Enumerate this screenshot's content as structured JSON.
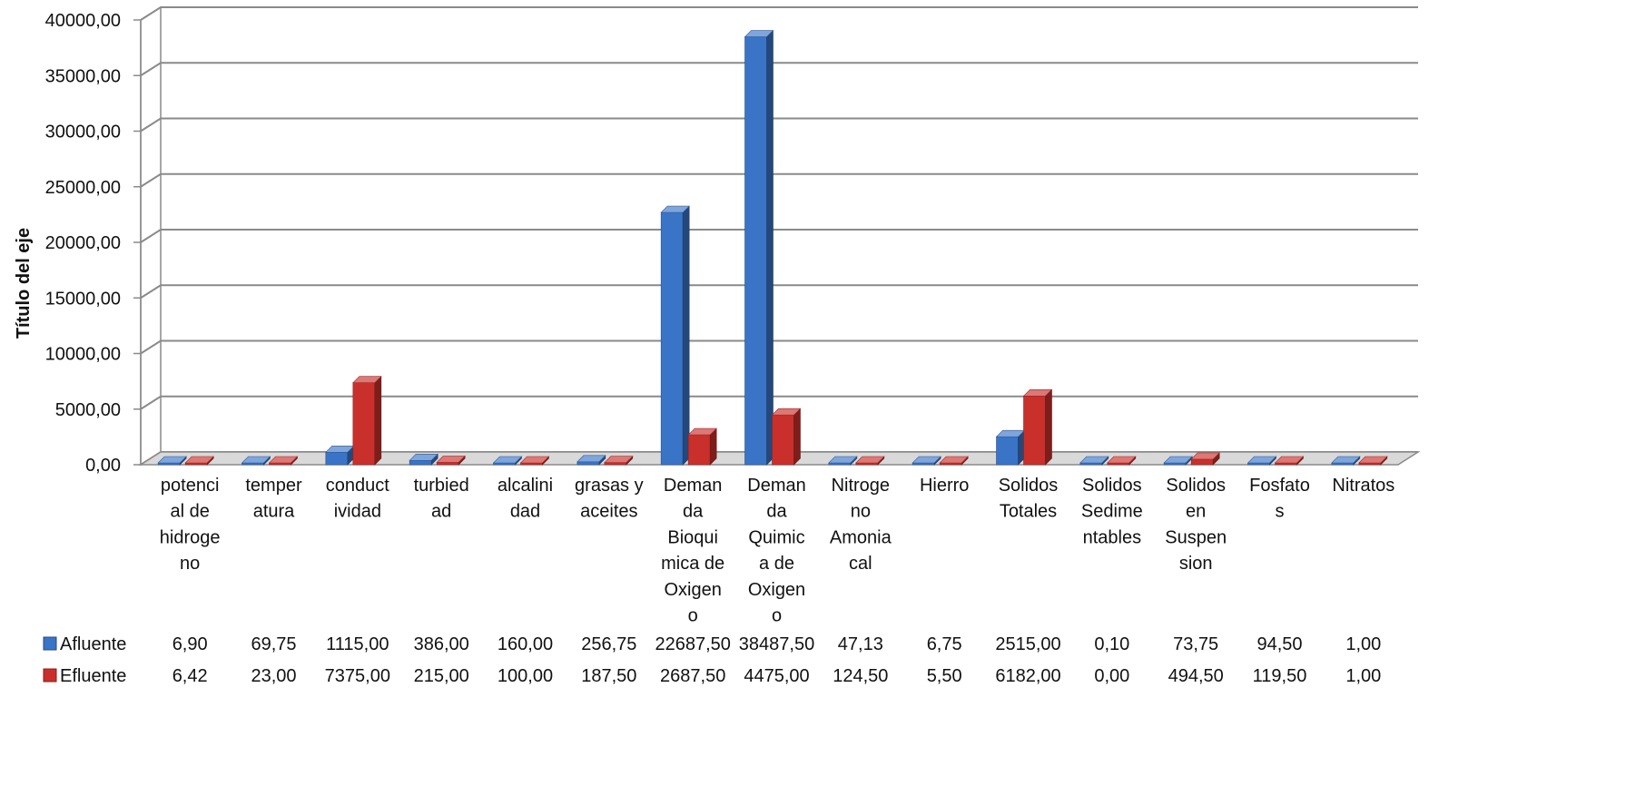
{
  "chart_data": {
    "type": "bar",
    "ylabel": "Título del eje",
    "ylim": [
      0,
      40000
    ],
    "yticks": [
      "0,00",
      "5000,00",
      "10000,00",
      "15000,00",
      "20000,00",
      "25000,00",
      "30000,00",
      "35000,00",
      "40000,00"
    ],
    "grid": true,
    "style": "3d-clustered-column",
    "legend_placement": "data-table-left",
    "categories": [
      [
        "potenci",
        "al de",
        "hidroge",
        "no"
      ],
      [
        "temper",
        "atura"
      ],
      [
        "conduct",
        "ividad"
      ],
      [
        "turbied",
        "ad"
      ],
      [
        "alcalini",
        "dad"
      ],
      [
        "grasas y",
        "aceites"
      ],
      [
        "Deman",
        "da",
        "Bioqui",
        "mica de",
        "Oxigen",
        "o"
      ],
      [
        "Deman",
        "da",
        "Quimic",
        "a de",
        "Oxigen",
        "o"
      ],
      [
        "Nitroge",
        "no",
        "Amonia",
        "cal"
      ],
      [
        "Hierro"
      ],
      [
        "Solidos",
        "Totales"
      ],
      [
        "Solidos",
        "Sedime",
        "ntables"
      ],
      [
        "Solidos",
        "en",
        "Suspen",
        "sion"
      ],
      [
        "Fosfato",
        "s"
      ],
      [
        "Nitratos"
      ]
    ],
    "series": [
      {
        "name": "Afluente",
        "color": "#3a74c6",
        "values": [
          6.9,
          69.75,
          1115.0,
          386.0,
          160.0,
          256.75,
          22687.5,
          38487.5,
          47.13,
          6.75,
          2515.0,
          0.1,
          73.75,
          94.5,
          1.0
        ],
        "labels": [
          "6,90",
          "69,75",
          "1115,00",
          "386,00",
          "160,00",
          "256,75",
          "22687,50",
          "38487,50",
          "47,13",
          "6,75",
          "2515,00",
          "0,10",
          "73,75",
          "94,50",
          "1,00"
        ]
      },
      {
        "name": "Efluente",
        "color": "#c9302c",
        "values": [
          6.42,
          23.0,
          7375.0,
          215.0,
          100.0,
          187.5,
          2687.5,
          4475.0,
          124.5,
          5.5,
          6182.0,
          0.0,
          494.5,
          119.5,
          1.0
        ],
        "labels": [
          "6,42",
          "23,00",
          "7375,00",
          "215,00",
          "100,00",
          "187,50",
          "2687,50",
          "4475,00",
          "124,50",
          "5,50",
          "6182,00",
          "0,00",
          "494,50",
          "119,50",
          "1,00"
        ]
      }
    ]
  }
}
